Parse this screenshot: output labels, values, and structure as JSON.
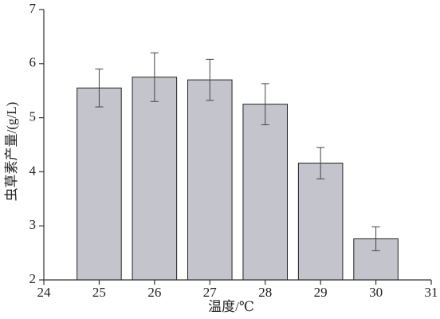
{
  "chart_data": {
    "type": "bar",
    "x_label": "温度/℃",
    "y_label": "虫草素产量/(g/L)",
    "x": [
      25,
      26,
      27,
      28,
      29,
      30
    ],
    "values": [
      5.55,
      5.75,
      5.7,
      5.25,
      4.16,
      2.76
    ],
    "errors": [
      0.35,
      0.45,
      0.38,
      0.38,
      0.29,
      0.22
    ],
    "color": "#c4c4cc",
    "xlim": [
      24,
      31
    ],
    "ylim": [
      2,
      7
    ],
    "xticks": [
      24,
      25,
      26,
      27,
      28,
      29,
      30,
      31
    ],
    "yticks": [
      2,
      3,
      4,
      5,
      6,
      7
    ]
  }
}
